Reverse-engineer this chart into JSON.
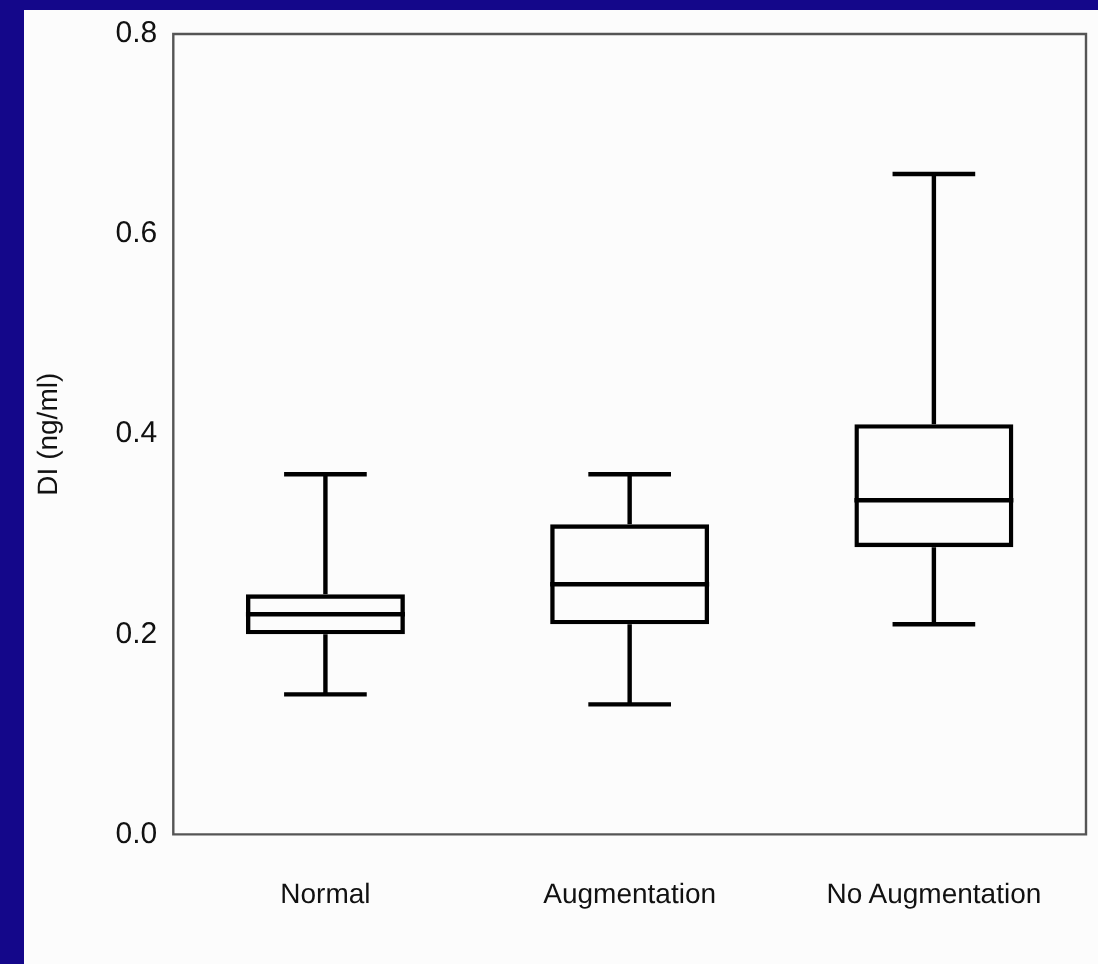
{
  "chart_data": {
    "type": "box",
    "ylabel": "DI (ng/ml)",
    "categories": [
      "Normal",
      "Augmentation",
      "No Augmentation"
    ],
    "boxes": [
      {
        "low": 0.14,
        "q1": 0.2,
        "median": 0.22,
        "q3": 0.24,
        "high": 0.36
      },
      {
        "low": 0.13,
        "q1": 0.21,
        "median": 0.25,
        "q3": 0.31,
        "high": 0.36
      },
      {
        "low": 0.21,
        "q1": 0.287,
        "median": 0.334,
        "q3": 0.41,
        "high": 0.66
      }
    ],
    "color": "#000000",
    "ylim": [
      0,
      0.8
    ],
    "yticks": [
      {
        "value": 0,
        "label": "0.0"
      },
      {
        "value": 0.2,
        "label": "0.2"
      },
      {
        "value": 0.4,
        "label": "0.4"
      },
      {
        "value": 0.6,
        "label": "0.6"
      },
      {
        "value": 0.8,
        "label": "0.8"
      }
    ],
    "grid": false,
    "legend": false
  }
}
